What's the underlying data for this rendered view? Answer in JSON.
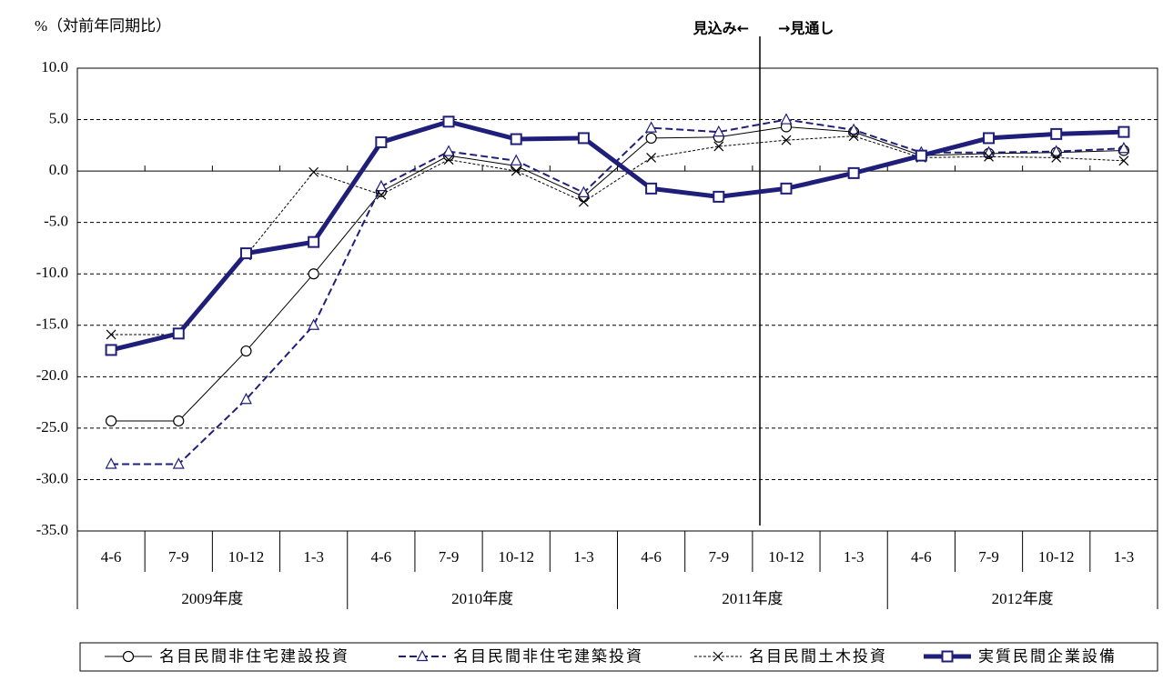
{
  "chart_data": {
    "type": "line",
    "y_label": "%（対前年同期比）",
    "annotations": [
      "見込み←",
      "→見通し"
    ],
    "categories": [
      "4-6",
      "7-9",
      "10-12",
      "1-3",
      "4-6",
      "7-9",
      "10-12",
      "1-3",
      "4-6",
      "7-9",
      "10-12",
      "1-3",
      "4-6",
      "7-9",
      "10-12",
      "1-3"
    ],
    "groups": [
      "2009年度",
      "2010年度",
      "2011年度",
      "2012年度"
    ],
    "ylim": [
      -35,
      10
    ],
    "yticks": [
      {
        "value": 10,
        "label": "10.0"
      },
      {
        "value": 5,
        "label": "5.0"
      },
      {
        "value": 0,
        "label": "0.0"
      },
      {
        "value": -5,
        "label": "-5.0"
      },
      {
        "value": -10,
        "label": "-10.0"
      },
      {
        "value": -15,
        "label": "-15.0"
      },
      {
        "value": -20,
        "label": "-20.0"
      },
      {
        "value": -25,
        "label": "-25.0"
      },
      {
        "value": -30,
        "label": "-30.0"
      },
      {
        "value": -35,
        "label": "-35.0"
      }
    ],
    "grid": true,
    "series": [
      {
        "name": "名目民間非住宅建設投資",
        "color": "#000000",
        "marker": "circle",
        "dash": "solid",
        "width": 1,
        "values": [
          -24.3,
          -24.3,
          -17.5,
          -10.0,
          -2.0,
          1.5,
          0.5,
          -2.5,
          3.2,
          3.3,
          4.3,
          3.8,
          1.5,
          1.7,
          1.8,
          2.0
        ]
      },
      {
        "name": "名目民間非住宅建築投資",
        "color": "#1f1f7a",
        "marker": "triangle",
        "dash": "dashed",
        "width": 2,
        "values": [
          -28.5,
          -28.5,
          -22.2,
          -15.0,
          -1.5,
          1.9,
          1.0,
          -2.1,
          4.2,
          3.8,
          5.0,
          4.0,
          1.8,
          1.8,
          1.9,
          2.2
        ]
      },
      {
        "name": "名目民間土木投資",
        "color": "#000000",
        "marker": "cross",
        "dash": "dotted",
        "width": 1,
        "values": [
          -15.9,
          -15.9,
          -8.2,
          -0.1,
          -2.3,
          1.1,
          0.0,
          -3.0,
          1.3,
          2.4,
          3.0,
          3.4,
          1.3,
          1.4,
          1.3,
          1.0
        ]
      },
      {
        "name": "実質民間企業設備",
        "color": "#1f1f7a",
        "marker": "square",
        "dash": "solid",
        "width": 5,
        "values": [
          -17.4,
          -15.8,
          -8.0,
          -6.9,
          2.8,
          4.8,
          3.1,
          3.2,
          -1.7,
          -2.5,
          -1.7,
          -0.2,
          1.5,
          3.2,
          3.6,
          3.8
        ]
      }
    ]
  }
}
